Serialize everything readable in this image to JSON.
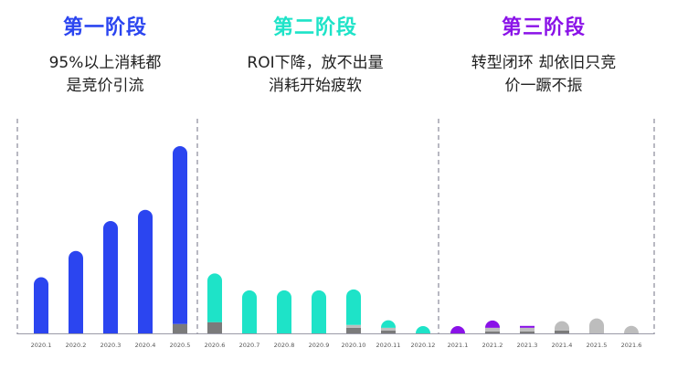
{
  "stages": [
    {
      "title": "第一阶段",
      "color": "#2b45f0",
      "lines": [
        "95%以上消耗都",
        "是竞价引流"
      ]
    },
    {
      "title": "第二阶段",
      "color": "#1ee3c8",
      "lines": [
        "ROI下降，放不出量",
        "消耗开始疲软"
      ]
    },
    {
      "title": "第三阶段",
      "color": "#8a12e8",
      "lines": [
        "转型闭环 却依旧只竞",
        "价一蹶不振"
      ]
    }
  ],
  "chart_data": {
    "type": "bar",
    "stacked": true,
    "categories": [
      "2020.1",
      "2020.2",
      "2020.3",
      "2020.4",
      "2020.5",
      "2020.6",
      "2020.7",
      "2020.8",
      "2020.9",
      "2020.10",
      "2020.11",
      "2020.12",
      "2021.1",
      "2021.2",
      "2021.3",
      "2021.4",
      "2021.5",
      "2021.6"
    ],
    "series": [
      {
        "color": "#7b7b7b",
        "values": [
          0,
          0,
          0,
          0,
          5,
          6,
          0,
          0,
          0,
          3,
          1.5,
          0,
          0,
          1,
          1,
          1.5,
          0,
          0
        ]
      },
      {
        "color": "#bdbdbd",
        "values": [
          0,
          0,
          0,
          0,
          0,
          0,
          0,
          0,
          0,
          1.5,
          1.5,
          0,
          0,
          2,
          2,
          5,
          8,
          4
        ]
      },
      {
        "color": "stage",
        "values": [
          30,
          44,
          60,
          66,
          95,
          26,
          23,
          23,
          23,
          19,
          4,
          2,
          2,
          1.5,
          1,
          0,
          0,
          0
        ]
      }
    ],
    "stage_of_category": [
      0,
      0,
      0,
      0,
      0,
      1,
      1,
      1,
      1,
      1,
      1,
      1,
      2,
      2,
      2,
      2,
      2,
      2
    ],
    "ylim": [
      0,
      100
    ],
    "grid": false
  }
}
